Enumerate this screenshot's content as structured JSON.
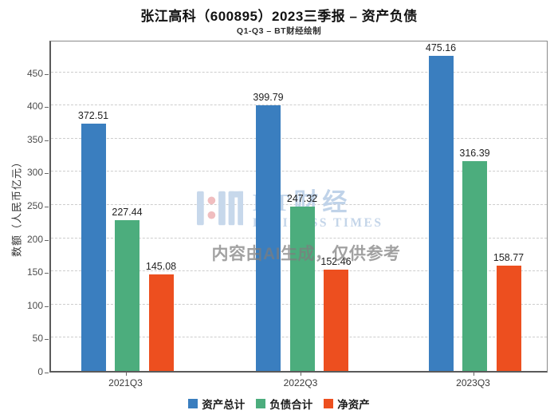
{
  "title": "张江高科（600895）2023三季报 – 资产负债",
  "subtitle": "Q1-Q3 – BT财经绘制",
  "watermark": {
    "logo_icon": "bt-logo",
    "brand_cn": "BT财经",
    "brand_en": "BUSINESS TIMES",
    "disclaimer": "内容由AI生成，仅供参考"
  },
  "colors": {
    "assets_blue": "#3a7ebf",
    "liabilities_green": "#4cad7d",
    "net_assets_orange": "#ed4f1f",
    "watermark_blue": "#c0d3e9",
    "watermark_pink": "#f0bdbf"
  },
  "chart_data": {
    "type": "bar",
    "title": "张江高科（600895）2023三季报 – 资产负债",
    "subtitle": "Q1-Q3 – BT财经绘制",
    "categories": [
      "2021Q3",
      "2022Q3",
      "2023Q3"
    ],
    "series": [
      {
        "name": "资产总计",
        "color": "#3a7ebf",
        "values": [
          372.51,
          399.79,
          475.16
        ]
      },
      {
        "name": "负债合计",
        "color": "#4cad7d",
        "values": [
          227.44,
          247.32,
          316.39
        ]
      },
      {
        "name": "净资产",
        "color": "#ed4f1f",
        "values": [
          145.08,
          152.46,
          158.77
        ]
      }
    ],
    "xlabel": "",
    "ylabel": "数额（人民币亿元）",
    "ylim": [
      0,
      500
    ],
    "yticks": [
      0,
      50,
      100,
      150,
      200,
      250,
      300,
      350,
      400,
      450
    ],
    "grid": true,
    "grid_style": "dashed",
    "legend_position": "bottom"
  }
}
